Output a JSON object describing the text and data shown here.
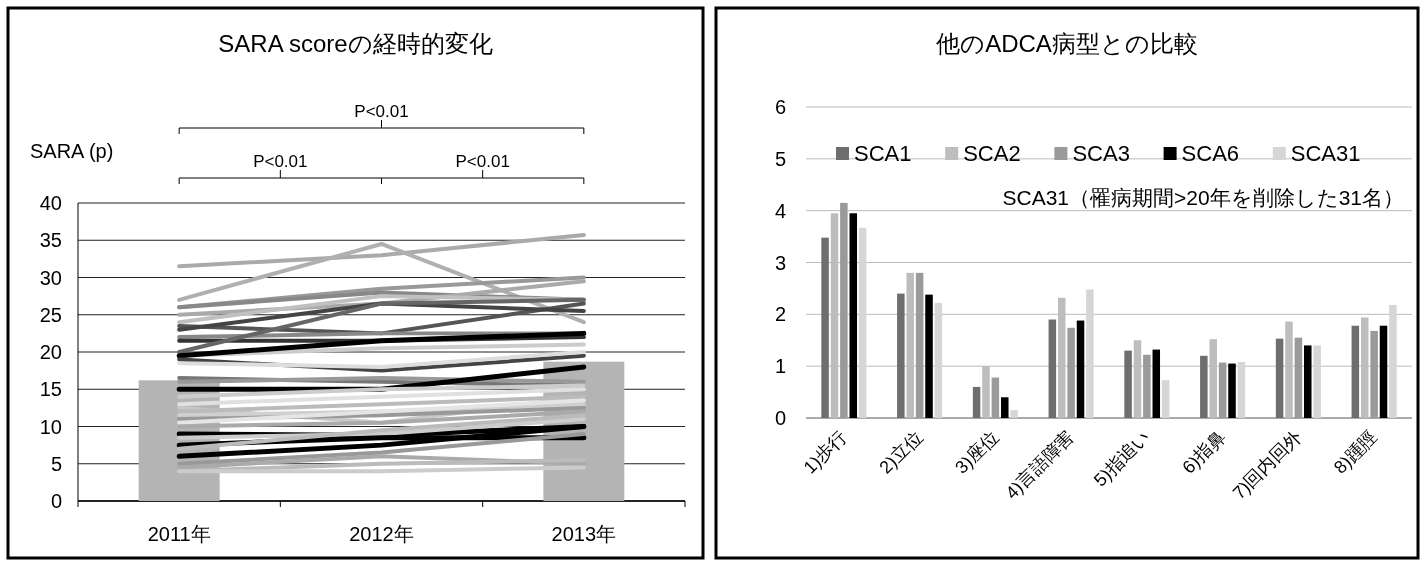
{
  "chart_data": [
    {
      "type": "bar",
      "title": "SARA scoreの経時的変化",
      "ylabel": "SARA (p)",
      "categories": [
        "2011年",
        "2012年",
        "2013年"
      ],
      "ylim": [
        0,
        40
      ],
      "yticks": [
        0,
        5,
        10,
        15,
        20,
        25,
        30,
        35,
        40
      ],
      "grid": "y",
      "annotations": [
        "P<0.01",
        "P<0.01",
        "P<0.01"
      ],
      "series": [
        {
          "type": "bar",
          "color": "#b4b4b4",
          "values": [
            16.2,
            null,
            18.7
          ]
        },
        {
          "type": "line",
          "color": "#aaaaaa",
          "values": [
            31.5,
            33,
            35.7
          ]
        },
        {
          "type": "line",
          "color": "#b0b0b0",
          "values": [
            27,
            34.5,
            24
          ]
        },
        {
          "type": "line",
          "color": "#999999",
          "values": [
            26,
            28.5,
            30
          ]
        },
        {
          "type": "line",
          "color": "#888888",
          "values": [
            26,
            28,
            27
          ]
        },
        {
          "type": "line",
          "color": "#aaaaaa",
          "values": [
            25,
            26.5,
            29.5
          ]
        },
        {
          "type": "line",
          "color": "#c0c0c0",
          "values": [
            24,
            27.5,
            27
          ]
        },
        {
          "type": "line",
          "color": "#555555",
          "values": [
            23.5,
            22.5,
            26.5
          ]
        },
        {
          "type": "line",
          "color": "#444444",
          "values": [
            23,
            26.5,
            25.5
          ]
        },
        {
          "type": "line",
          "color": "#888888",
          "values": [
            22,
            22.5,
            22.5
          ]
        },
        {
          "type": "line",
          "color": "#333333",
          "values": [
            21.5,
            21.5,
            22
          ]
        },
        {
          "type": "line",
          "color": "#666666",
          "values": [
            20,
            26.5,
            27
          ]
        },
        {
          "type": "line",
          "color": "#cccccc",
          "values": [
            19.5,
            20.5,
            21
          ]
        },
        {
          "type": "line",
          "color": "#000000",
          "values": [
            19.5,
            21.5,
            22.5
          ]
        },
        {
          "type": "line",
          "color": "#444444",
          "values": [
            19,
            17.5,
            19.5
          ]
        },
        {
          "type": "line",
          "color": "#dddddd",
          "values": [
            18.5,
            18,
            20
          ]
        },
        {
          "type": "line",
          "color": "#777777",
          "values": [
            16.5,
            16,
            15.5
          ]
        },
        {
          "type": "line",
          "color": "#999999",
          "values": [
            16,
            16.5,
            16
          ]
        },
        {
          "type": "line",
          "color": "#000000",
          "values": [
            15,
            15,
            18
          ]
        },
        {
          "type": "line",
          "color": "#cccccc",
          "values": [
            14,
            15,
            15.5
          ]
        },
        {
          "type": "line",
          "color": "#e0e0e0",
          "values": [
            13,
            14,
            15
          ]
        },
        {
          "type": "line",
          "color": "#c8c8c8",
          "values": [
            12.5,
            10.5,
            14
          ]
        },
        {
          "type": "line",
          "color": "#bbbbbb",
          "values": [
            12,
            13,
            14
          ]
        },
        {
          "type": "line",
          "color": "#d0d0d0",
          "values": [
            11.5,
            12,
            13
          ]
        },
        {
          "type": "line",
          "color": "#999999",
          "values": [
            11,
            11.5,
            12.5
          ]
        },
        {
          "type": "line",
          "color": "#e5e5e5",
          "values": [
            10.5,
            12,
            13.5
          ]
        },
        {
          "type": "line",
          "color": "#aaaaaa",
          "values": [
            10,
            10.5,
            12
          ]
        },
        {
          "type": "line",
          "color": "#000000",
          "values": [
            9,
            8.8,
            10
          ]
        },
        {
          "type": "line",
          "color": "#cccccc",
          "values": [
            8.5,
            9,
            11
          ]
        },
        {
          "type": "line",
          "color": "#000000",
          "values": [
            7.5,
            8.5,
            8.5
          ]
        },
        {
          "type": "line",
          "color": "#bbbbbb",
          "values": [
            7,
            9.5,
            11.5
          ]
        },
        {
          "type": "line",
          "color": "#000000",
          "values": [
            6,
            7.5,
            10
          ]
        },
        {
          "type": "line",
          "color": "#999999",
          "values": [
            5,
            6.5,
            9
          ]
        },
        {
          "type": "line",
          "color": "#aaaaaa",
          "values": [
            4.5,
            6,
            5
          ]
        },
        {
          "type": "line",
          "color": "#bbbbbb",
          "values": [
            4,
            5,
            5.5
          ]
        },
        {
          "type": "line",
          "color": "#cccccc",
          "values": [
            4,
            4,
            4.5
          ]
        }
      ]
    },
    {
      "type": "bar",
      "title": "他のADCA病型との比較",
      "categories": [
        "1)歩行",
        "2)立位",
        "3)座位",
        "4)言語障害",
        "5)指追い",
        "6)指鼻",
        "7)回内回外",
        "8)踵脛"
      ],
      "ylim": [
        0,
        6
      ],
      "yticks": [
        0,
        1,
        2,
        3,
        4,
        5,
        6
      ],
      "grid": "y",
      "legend": "top",
      "annotations": [
        "SCA31（罹病期間>20年を削除した31名）"
      ],
      "series": [
        {
          "name": "SCA1",
          "color": "#6e6e6e",
          "values": [
            3.48,
            2.4,
            0.6,
            1.9,
            1.3,
            1.2,
            1.53,
            1.78
          ]
        },
        {
          "name": "SCA2",
          "color": "#bdbdbd",
          "values": [
            3.95,
            2.8,
            1.0,
            2.32,
            1.5,
            1.52,
            1.86,
            1.94
          ]
        },
        {
          "name": "SCA3",
          "color": "#9a9a9a",
          "values": [
            4.15,
            2.8,
            0.78,
            1.74,
            1.22,
            1.07,
            1.55,
            1.68
          ]
        },
        {
          "name": "SCA6",
          "color": "#000000",
          "values": [
            3.95,
            2.38,
            0.4,
            1.88,
            1.32,
            1.05,
            1.4,
            1.78
          ]
        },
        {
          "name": "SCA31",
          "color": "#d6d6d6",
          "values": [
            3.67,
            2.22,
            0.15,
            2.48,
            0.73,
            1.08,
            1.4,
            2.18
          ]
        }
      ]
    }
  ]
}
